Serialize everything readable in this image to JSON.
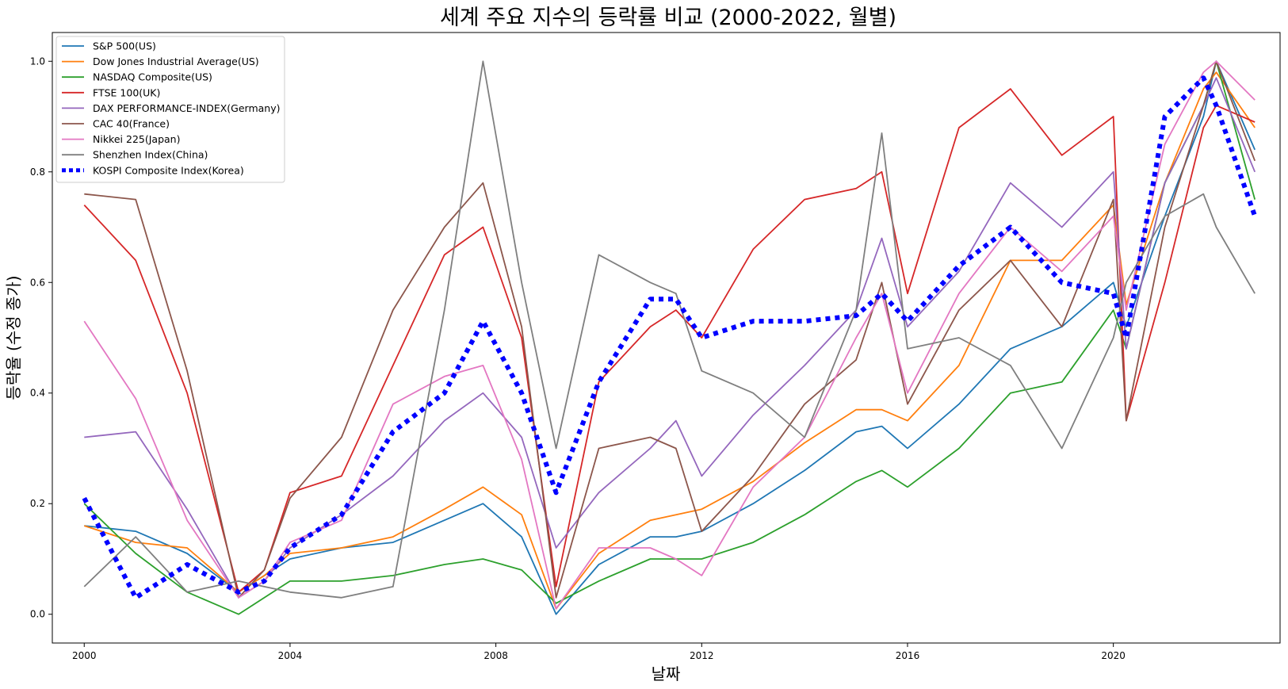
{
  "chart_data": {
    "type": "line",
    "title": "세계 주요 지수의 등락률 비교 (2000-2022, 월별)",
    "xlabel": "날짜",
    "ylabel": "등락율 (수정 종가)",
    "x_ticks": [
      "2000",
      "2004",
      "2008",
      "2012",
      "2016",
      "2020"
    ],
    "y_ticks": [
      "0.0",
      "0.2",
      "0.4",
      "0.6",
      "0.8",
      "1.0"
    ],
    "xlim": [
      1999.38,
      2023.24
    ],
    "ylim": [
      -0.052,
      1.052
    ],
    "grid": false,
    "legend_position": "upper-left",
    "x": [
      2000.0,
      2001.0,
      2002.0,
      2003.0,
      2003.5,
      2004.0,
      2005.0,
      2006.0,
      2007.0,
      2007.75,
      2008.5,
      2009.17,
      2010.0,
      2011.0,
      2011.5,
      2012.0,
      2013.0,
      2014.0,
      2015.0,
      2015.5,
      2016.0,
      2017.0,
      2018.0,
      2019.0,
      2020.0,
      2020.25,
      2021.0,
      2021.75,
      2022.0,
      2022.75
    ],
    "series": [
      {
        "name": "S&P 500(US)",
        "color": "#1f77b4",
        "style": "solid",
        "values": [
          0.16,
          0.15,
          0.11,
          0.04,
          0.07,
          0.1,
          0.12,
          0.13,
          0.17,
          0.2,
          0.14,
          0.0,
          0.09,
          0.14,
          0.14,
          0.15,
          0.2,
          0.26,
          0.33,
          0.34,
          0.3,
          0.38,
          0.48,
          0.52,
          0.6,
          0.52,
          0.72,
          0.9,
          1.0,
          0.84
        ]
      },
      {
        "name": "Dow Jones Industrial Average(US)",
        "color": "#ff7f0e",
        "style": "solid",
        "values": [
          0.16,
          0.13,
          0.12,
          0.04,
          0.07,
          0.11,
          0.12,
          0.14,
          0.19,
          0.23,
          0.18,
          0.01,
          0.11,
          0.17,
          0.18,
          0.19,
          0.24,
          0.31,
          0.37,
          0.37,
          0.35,
          0.45,
          0.64,
          0.64,
          0.74,
          0.56,
          0.78,
          0.95,
          0.98,
          0.88
        ]
      },
      {
        "name": "NASDAQ Composite(US)",
        "color": "#2ca02c",
        "style": "solid",
        "values": [
          0.2,
          0.11,
          0.04,
          0.0,
          0.03,
          0.06,
          0.06,
          0.07,
          0.09,
          0.1,
          0.08,
          0.02,
          0.06,
          0.1,
          0.1,
          0.1,
          0.13,
          0.18,
          0.24,
          0.26,
          0.23,
          0.3,
          0.4,
          0.42,
          0.55,
          0.48,
          0.78,
          0.92,
          1.0,
          0.75
        ]
      },
      {
        "name": "FTSE 100(UK)",
        "color": "#d62728",
        "style": "solid",
        "values": [
          0.74,
          0.64,
          0.4,
          0.04,
          0.08,
          0.22,
          0.25,
          0.45,
          0.65,
          0.7,
          0.5,
          0.05,
          0.42,
          0.52,
          0.55,
          0.5,
          0.66,
          0.75,
          0.77,
          0.8,
          0.58,
          0.88,
          0.95,
          0.83,
          0.9,
          0.35,
          0.6,
          0.88,
          0.92,
          0.89
        ]
      },
      {
        "name": "DAX PERFORMANCE-INDEX(Germany)",
        "color": "#9467bd",
        "style": "solid",
        "values": [
          0.32,
          0.33,
          0.19,
          0.03,
          0.06,
          0.12,
          0.18,
          0.25,
          0.35,
          0.4,
          0.32,
          0.12,
          0.22,
          0.3,
          0.35,
          0.25,
          0.36,
          0.45,
          0.55,
          0.68,
          0.52,
          0.62,
          0.78,
          0.7,
          0.8,
          0.48,
          0.78,
          0.92,
          0.97,
          0.8
        ]
      },
      {
        "name": "CAC 40(France)",
        "color": "#8c564b",
        "style": "solid",
        "values": [
          0.76,
          0.75,
          0.44,
          0.03,
          0.08,
          0.21,
          0.32,
          0.55,
          0.7,
          0.78,
          0.52,
          0.03,
          0.3,
          0.32,
          0.3,
          0.15,
          0.25,
          0.38,
          0.46,
          0.6,
          0.38,
          0.55,
          0.64,
          0.52,
          0.75,
          0.35,
          0.7,
          0.92,
          1.0,
          0.82
        ]
      },
      {
        "name": "Nikkei 225(Japan)",
        "color": "#e377c2",
        "style": "solid",
        "values": [
          0.53,
          0.39,
          0.17,
          0.03,
          0.06,
          0.13,
          0.17,
          0.38,
          0.43,
          0.45,
          0.28,
          0.01,
          0.12,
          0.12,
          0.1,
          0.07,
          0.23,
          0.32,
          0.5,
          0.58,
          0.4,
          0.58,
          0.7,
          0.62,
          0.72,
          0.55,
          0.85,
          0.98,
          1.0,
          0.93
        ]
      },
      {
        "name": "Shenzhen Index(China)",
        "color": "#7f7f7f",
        "style": "solid",
        "values": [
          0.05,
          0.14,
          0.04,
          0.06,
          0.05,
          0.04,
          0.03,
          0.05,
          0.55,
          1.0,
          0.6,
          0.3,
          0.65,
          0.6,
          0.58,
          0.44,
          0.4,
          0.32,
          0.55,
          0.87,
          0.48,
          0.5,
          0.45,
          0.3,
          0.5,
          0.6,
          0.72,
          0.76,
          0.7,
          0.58
        ]
      },
      {
        "name": "KOSPI Composite Index(Korea)",
        "color": "#0000ff",
        "style": "dotted",
        "values": [
          0.21,
          0.03,
          0.09,
          0.04,
          0.06,
          0.12,
          0.18,
          0.33,
          0.4,
          0.53,
          0.4,
          0.22,
          0.42,
          0.57,
          0.57,
          0.5,
          0.53,
          0.53,
          0.54,
          0.58,
          0.53,
          0.63,
          0.7,
          0.6,
          0.58,
          0.5,
          0.9,
          0.97,
          0.92,
          0.72
        ]
      }
    ]
  }
}
